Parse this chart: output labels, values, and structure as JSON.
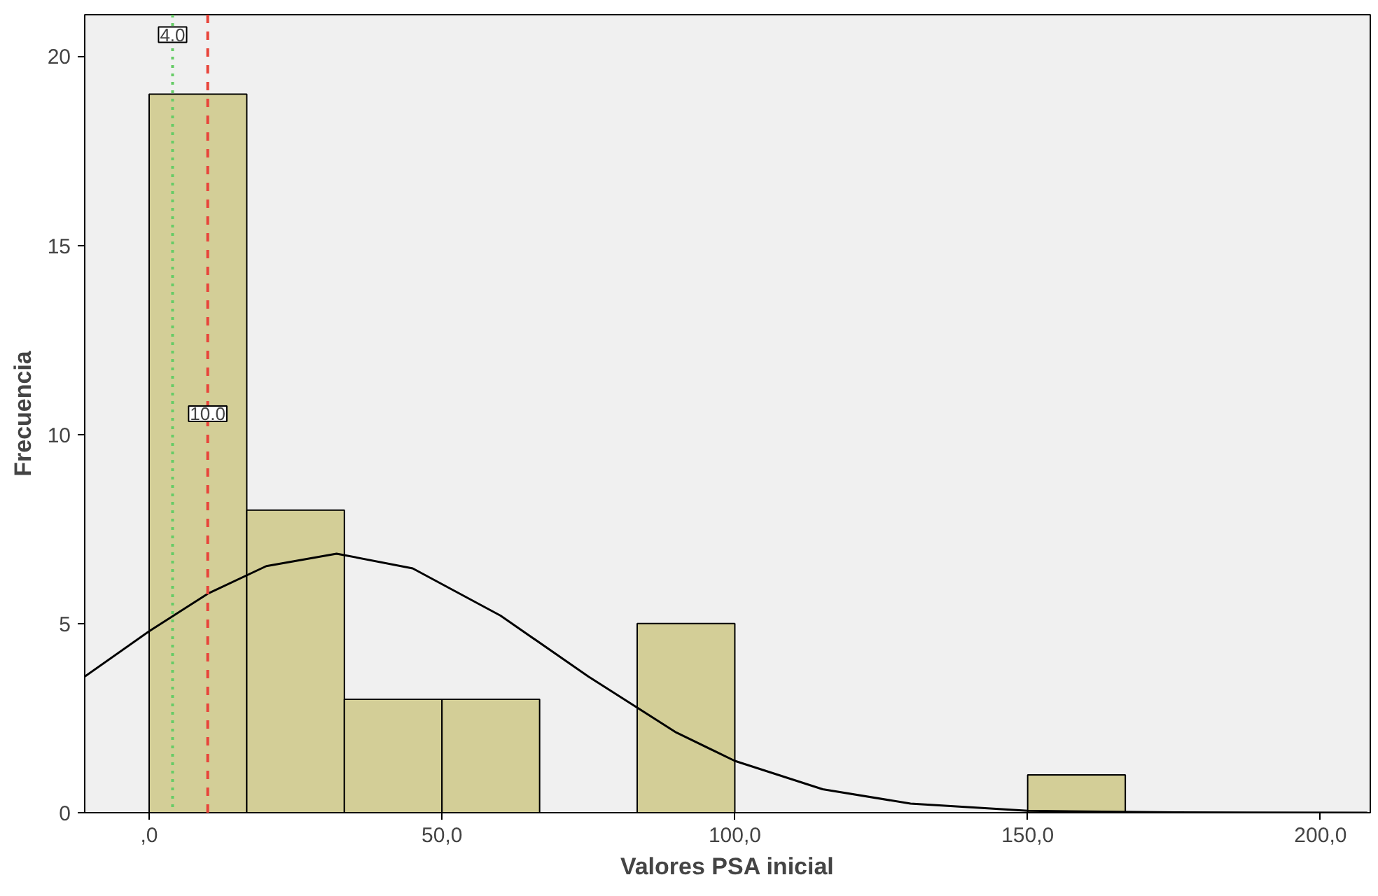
{
  "chart_data": {
    "type": "histogram",
    "xlabel": "Valores PSA inicial",
    "ylabel": "Frecuencia",
    "bins": [
      0,
      16.67,
      33.33,
      50,
      66.67,
      83.33,
      100,
      116.67,
      133.33,
      150,
      166.67
    ],
    "values": [
      19,
      8,
      3,
      3,
      0,
      5,
      0,
      0,
      0,
      1
    ],
    "color": "#d3ce97",
    "series": [
      {
        "type": "line",
        "color": "#000000",
        "x": [
          -11,
          0,
          10,
          20,
          32,
          45,
          60,
          75,
          90,
          100,
          115,
          130,
          150,
          175,
          208
        ],
        "values": [
          3.6,
          4.8,
          5.79,
          6.52,
          6.85,
          6.46,
          5.21,
          3.6,
          2.12,
          1.37,
          0.62,
          0.24,
          0.05,
          0.01,
          0.0
        ]
      }
    ],
    "xlim": [
      -11,
      208.5
    ],
    "ylim": [
      0,
      21.1
    ],
    "xticks": [
      {
        "value": 0,
        "label": ",0"
      },
      {
        "value": 50,
        "label": "50,0"
      },
      {
        "value": 100,
        "label": "100,0"
      },
      {
        "value": 150,
        "label": "150,0"
      },
      {
        "value": 200,
        "label": "200,0"
      }
    ],
    "yticks": [
      0,
      5,
      10,
      15,
      20
    ],
    "ref_lines": [
      {
        "axis": "x",
        "value": 4,
        "label": "4.0",
        "color": "#66cc66",
        "line_style": "dotted"
      },
      {
        "axis": "x",
        "value": 10,
        "label": "10.0",
        "color": "#e8443a",
        "line_style": "dashed"
      }
    ],
    "grid": false
  }
}
